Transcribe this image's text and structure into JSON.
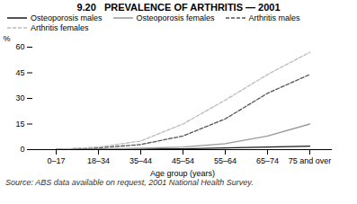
{
  "chart_data": {
    "type": "line",
    "title": "9.20   PREVALENCE OF ARTHRITIS — 2001",
    "xlabel": "Age group (years)",
    "ylabel": "%",
    "source": "Source: ABS data available on request, 2001 National Health Survey.",
    "categories": [
      "0–17",
      "18–34",
      "35–44",
      "45–54",
      "55–64",
      "65–74",
      "75 and over"
    ],
    "series": [
      {
        "name": "Osteoporosis males",
        "color": "#1a1a1a",
        "line_style": "solid",
        "values": [
          0.1,
          0.2,
          0.3,
          0.5,
          1.0,
          1.5,
          2.0
        ]
      },
      {
        "name": "Osteoporosis females",
        "color": "#999999",
        "line_style": "solid",
        "values": [
          0.1,
          0.3,
          0.8,
          1.5,
          3.5,
          8.0,
          15.0
        ]
      },
      {
        "name": "Arthritis males",
        "color": "#555555",
        "line_style": "dashed",
        "values": [
          0.2,
          1.0,
          3.0,
          8.0,
          18.0,
          33.0,
          44.0
        ]
      },
      {
        "name": "Arthritis females",
        "color": "#bbbbbb",
        "line_style": "dashed",
        "values": [
          0.2,
          1.5,
          5.0,
          15.0,
          29.0,
          44.0,
          57.0
        ]
      }
    ],
    "ylim": [
      0,
      60
    ],
    "yticks": [
      0,
      15,
      30,
      45,
      60
    ],
    "grid": false,
    "legend": "upper left"
  }
}
